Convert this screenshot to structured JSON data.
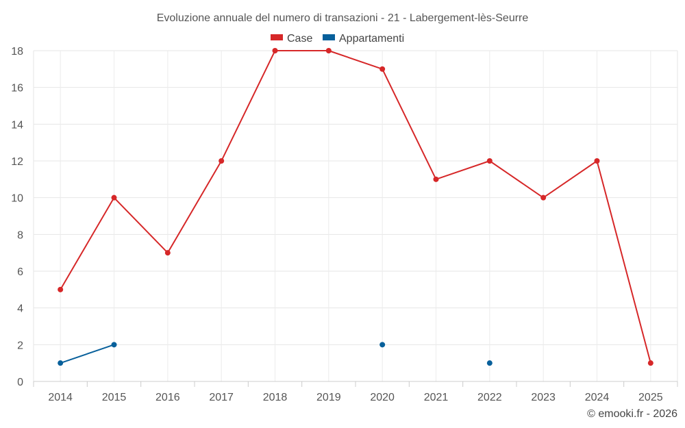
{
  "chart_data": {
    "type": "line",
    "title": "Evoluzione annuale del numero di transazioni - 21 - Labergement-lès-Seurre",
    "xlabel": "",
    "ylabel": "",
    "categories": [
      "2014",
      "2015",
      "2016",
      "2017",
      "2018",
      "2019",
      "2020",
      "2021",
      "2022",
      "2023",
      "2024",
      "2025"
    ],
    "ylim": [
      0,
      18
    ],
    "yticks": [
      0,
      2,
      4,
      6,
      8,
      10,
      12,
      14,
      16,
      18
    ],
    "grid": true,
    "legend_position": "top-center",
    "series": [
      {
        "name": "Case",
        "color": "#d62728",
        "values": [
          5,
          10,
          7,
          12,
          18,
          18,
          17,
          11,
          12,
          10,
          12,
          1
        ]
      },
      {
        "name": "Appartamenti",
        "color": "#08609b",
        "values": [
          1,
          2,
          null,
          null,
          null,
          null,
          2,
          null,
          1,
          null,
          null,
          null
        ]
      }
    ]
  },
  "credit": "© emooki.fr - 2026"
}
